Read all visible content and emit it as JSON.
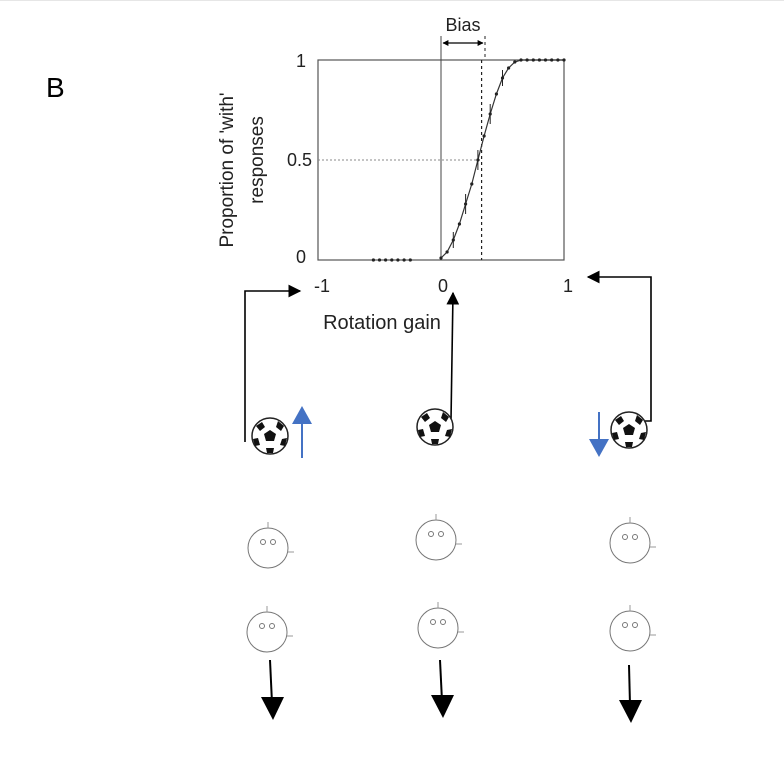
{
  "figure": {
    "panel_label": "B",
    "bias_label": "Bias",
    "ylabel_line1": "Proportion of 'with'",
    "ylabel_line2": "responses",
    "xlabel": "Rotation gain"
  },
  "chart_data": {
    "type": "line",
    "xlim": [
      -1,
      1
    ],
    "ylim": [
      0,
      1
    ],
    "x_ticks": [
      "-1",
      "0",
      "1"
    ],
    "y_ticks": [
      "0",
      "0.5",
      "1"
    ],
    "xlabel": "Rotation gain",
    "ylabel": "Proportion of 'with' responses",
    "bias_x": 0.33,
    "reference_y": 0.5,
    "grid": false,
    "series": [
      {
        "x": [
          -0.55,
          -0.5,
          -0.45,
          -0.4,
          -0.35,
          -0.3,
          -0.25,
          0.0,
          0.05,
          0.1,
          0.15,
          0.2,
          0.25,
          0.3,
          0.35,
          0.4,
          0.45,
          0.5,
          0.55,
          0.6,
          0.65,
          0.7,
          0.75,
          0.8,
          0.85,
          0.9,
          0.95,
          1.0
        ],
        "y": [
          0,
          0,
          0,
          0,
          0,
          0,
          0,
          0.01,
          0.04,
          0.1,
          0.18,
          0.28,
          0.38,
          0.5,
          0.62,
          0.73,
          0.83,
          0.91,
          0.96,
          0.99,
          1,
          1,
          1,
          1,
          1,
          1,
          1,
          1
        ]
      }
    ],
    "error_bars": [
      {
        "x": 0.1,
        "y": 0.1,
        "err": 0.04
      },
      {
        "x": 0.2,
        "y": 0.28,
        "err": 0.05
      },
      {
        "x": 0.3,
        "y": 0.5,
        "err": 0.05
      },
      {
        "x": 0.4,
        "y": 0.73,
        "err": 0.05
      },
      {
        "x": 0.5,
        "y": 0.91,
        "err": 0.04
      }
    ]
  },
  "scene": {
    "columns": [
      {
        "ball_motion": "up",
        "motion_color": "#4472c4"
      },
      {
        "ball_motion": "none"
      },
      {
        "ball_motion": "down",
        "motion_color": "#4472c4"
      }
    ]
  }
}
